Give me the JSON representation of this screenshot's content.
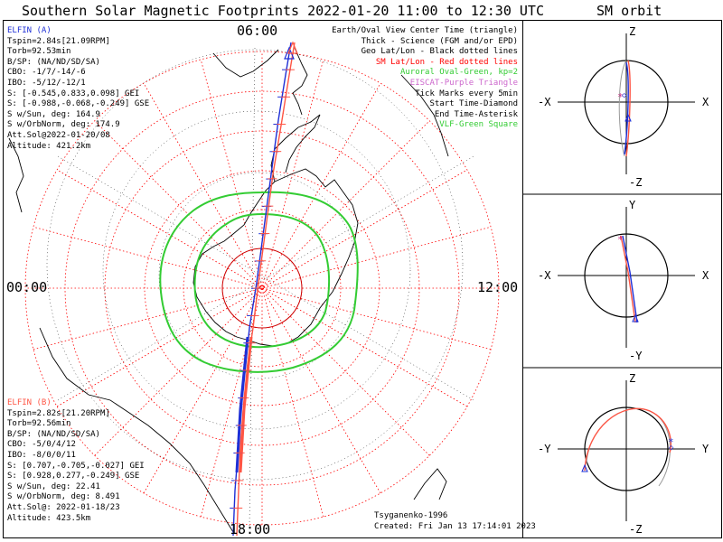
{
  "title": "Southern Solar Magnetic Footprints 2022-01-20 11:00 to 12:30 UTC",
  "sm_title": "SM orbit",
  "mlt_labels": {
    "top": "06:00",
    "bottom": "18:00",
    "left": "00:00",
    "right": "12:00"
  },
  "elfin_a": {
    "name": "ELFIN (A)",
    "color": "#1e2fd6",
    "lines": [
      "Tspin=2.84s[21.09RPM]",
      "Torb=92.53min",
      "B/SP: (NA/ND/SD/SA)",
      "CBO: -1/7/-14/-6",
      "IBO: -5/12/-12/1",
      "S: [-0.545,0.833,0.098] GEI",
      "S: [-0.988,-0.068,-0.249] GSE",
      "S w/Sun, deg: 164.9",
      "S w/OrbNorm, deg: 174.9",
      "Att.Sol@2022-01-20/08",
      "Altitude: 421.2km"
    ]
  },
  "elfin_b": {
    "name": "ELFIN (B)",
    "color": "#ff5544",
    "lines": [
      "Tspin=2.82s[21.20RPM]",
      "Torb=92.56min",
      "B/SP: (NA/ND/SD/SA)",
      "CBO: -5/0/4/12",
      "IBO: -8/0/0/11",
      "S: [0.707,-0.705,-0.027] GEI",
      "S: [0.928,0.277,-0.249] GSE",
      "S w/Sun, deg: 22.41",
      "S w/OrbNorm, deg: 8.491",
      "Att.Sol@: 2022-01-18/23",
      "Altitude: 423.5km"
    ]
  },
  "legend": [
    {
      "text": "Earth/Oval View Center Time (triangle)",
      "color": "#000000"
    },
    {
      "text": "Thick - Science (FGM and/or EPD)",
      "color": "#000000"
    },
    {
      "text": "Geo Lat/Lon - Black dotted lines",
      "color": "#000000"
    },
    {
      "text": "SM Lat/Lon - Red dotted lines",
      "color": "#ff0000"
    },
    {
      "text": "Auroral Oval-Green, kp=2",
      "color": "#33cc33"
    },
    {
      "text": "EISCAT-Purple Triangle",
      "color": "#cc66cc"
    },
    {
      "text": "Tick Marks every 5min",
      "color": "#000000"
    },
    {
      "text": "Start Time-Diamond",
      "color": "#000000"
    },
    {
      "text": "End Time-Asterisk",
      "color": "#000000"
    },
    {
      "text": "VLF-Green Square",
      "color": "#33cc33"
    }
  ],
  "credits": [
    "Tsyganenko-1996",
    "Created: Fri Jan 13 17:14:01 2023"
  ],
  "sm_panels": [
    {
      "id": "xz",
      "top": "Z",
      "bottom": "-Z",
      "left": "-X",
      "right": "X"
    },
    {
      "id": "xy",
      "top": "Y",
      "bottom": "-Y",
      "left": "-X",
      "right": "X"
    },
    {
      "id": "yz",
      "top": "Z",
      "bottom": "-Z",
      "left": "-Y",
      "right": "Y"
    }
  ],
  "colors": {
    "sm_grid": "#ff0000",
    "geo_grid": "#000000",
    "oval": "#33cc33",
    "track_a": "#1e2fd6",
    "track_b": "#ff5544"
  }
}
